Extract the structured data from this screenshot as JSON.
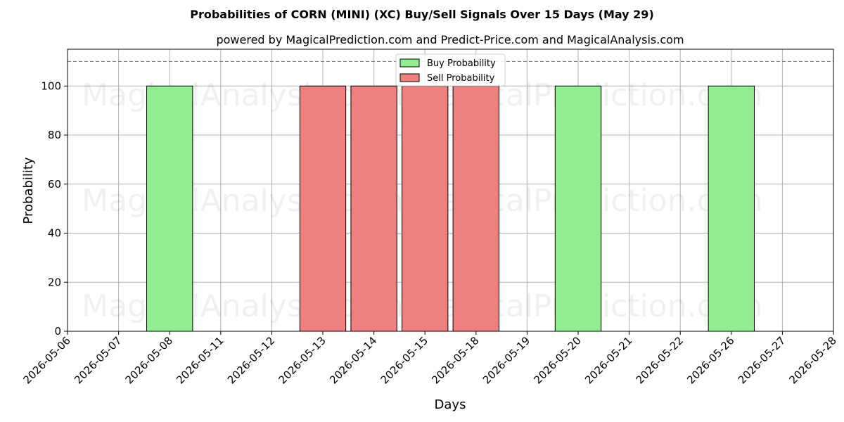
{
  "chart_data": {
    "type": "bar",
    "title": "Probabilities of CORN (MINI) (XC) Buy/Sell Signals Over 15 Days (May 29)",
    "subtitle": "powered by MagicalPrediction.com and Predict-Price.com and MagicalAnalysis.com",
    "xlabel": "Days",
    "ylabel": "Probability",
    "ylim": [
      0,
      115
    ],
    "yticks": [
      0,
      20,
      40,
      60,
      80,
      100
    ],
    "reference_line": 110,
    "grid": true,
    "legend_position": "top-center",
    "categories": [
      "2026-05-06",
      "2026-05-07",
      "2026-05-08",
      "2026-05-11",
      "2026-05-12",
      "2026-05-13",
      "2026-05-14",
      "2026-05-15",
      "2026-05-18",
      "2026-05-19",
      "2026-05-20",
      "2026-05-21",
      "2026-05-22",
      "2026-05-26",
      "2026-05-27",
      "2026-05-28"
    ],
    "series": [
      {
        "name": "Buy Probability",
        "color": "#90ee90",
        "values": [
          0,
          0,
          100,
          0,
          0,
          0,
          0,
          0,
          0,
          0,
          100,
          0,
          0,
          100,
          0,
          0
        ]
      },
      {
        "name": "Sell Probability",
        "color": "#f08080",
        "values": [
          0,
          0,
          0,
          0,
          0,
          100,
          100,
          100,
          100,
          0,
          0,
          0,
          0,
          0,
          0,
          0
        ]
      }
    ],
    "watermarks": [
      "MagicalAnalysis.com",
      "MagicalPrediction.com"
    ]
  }
}
